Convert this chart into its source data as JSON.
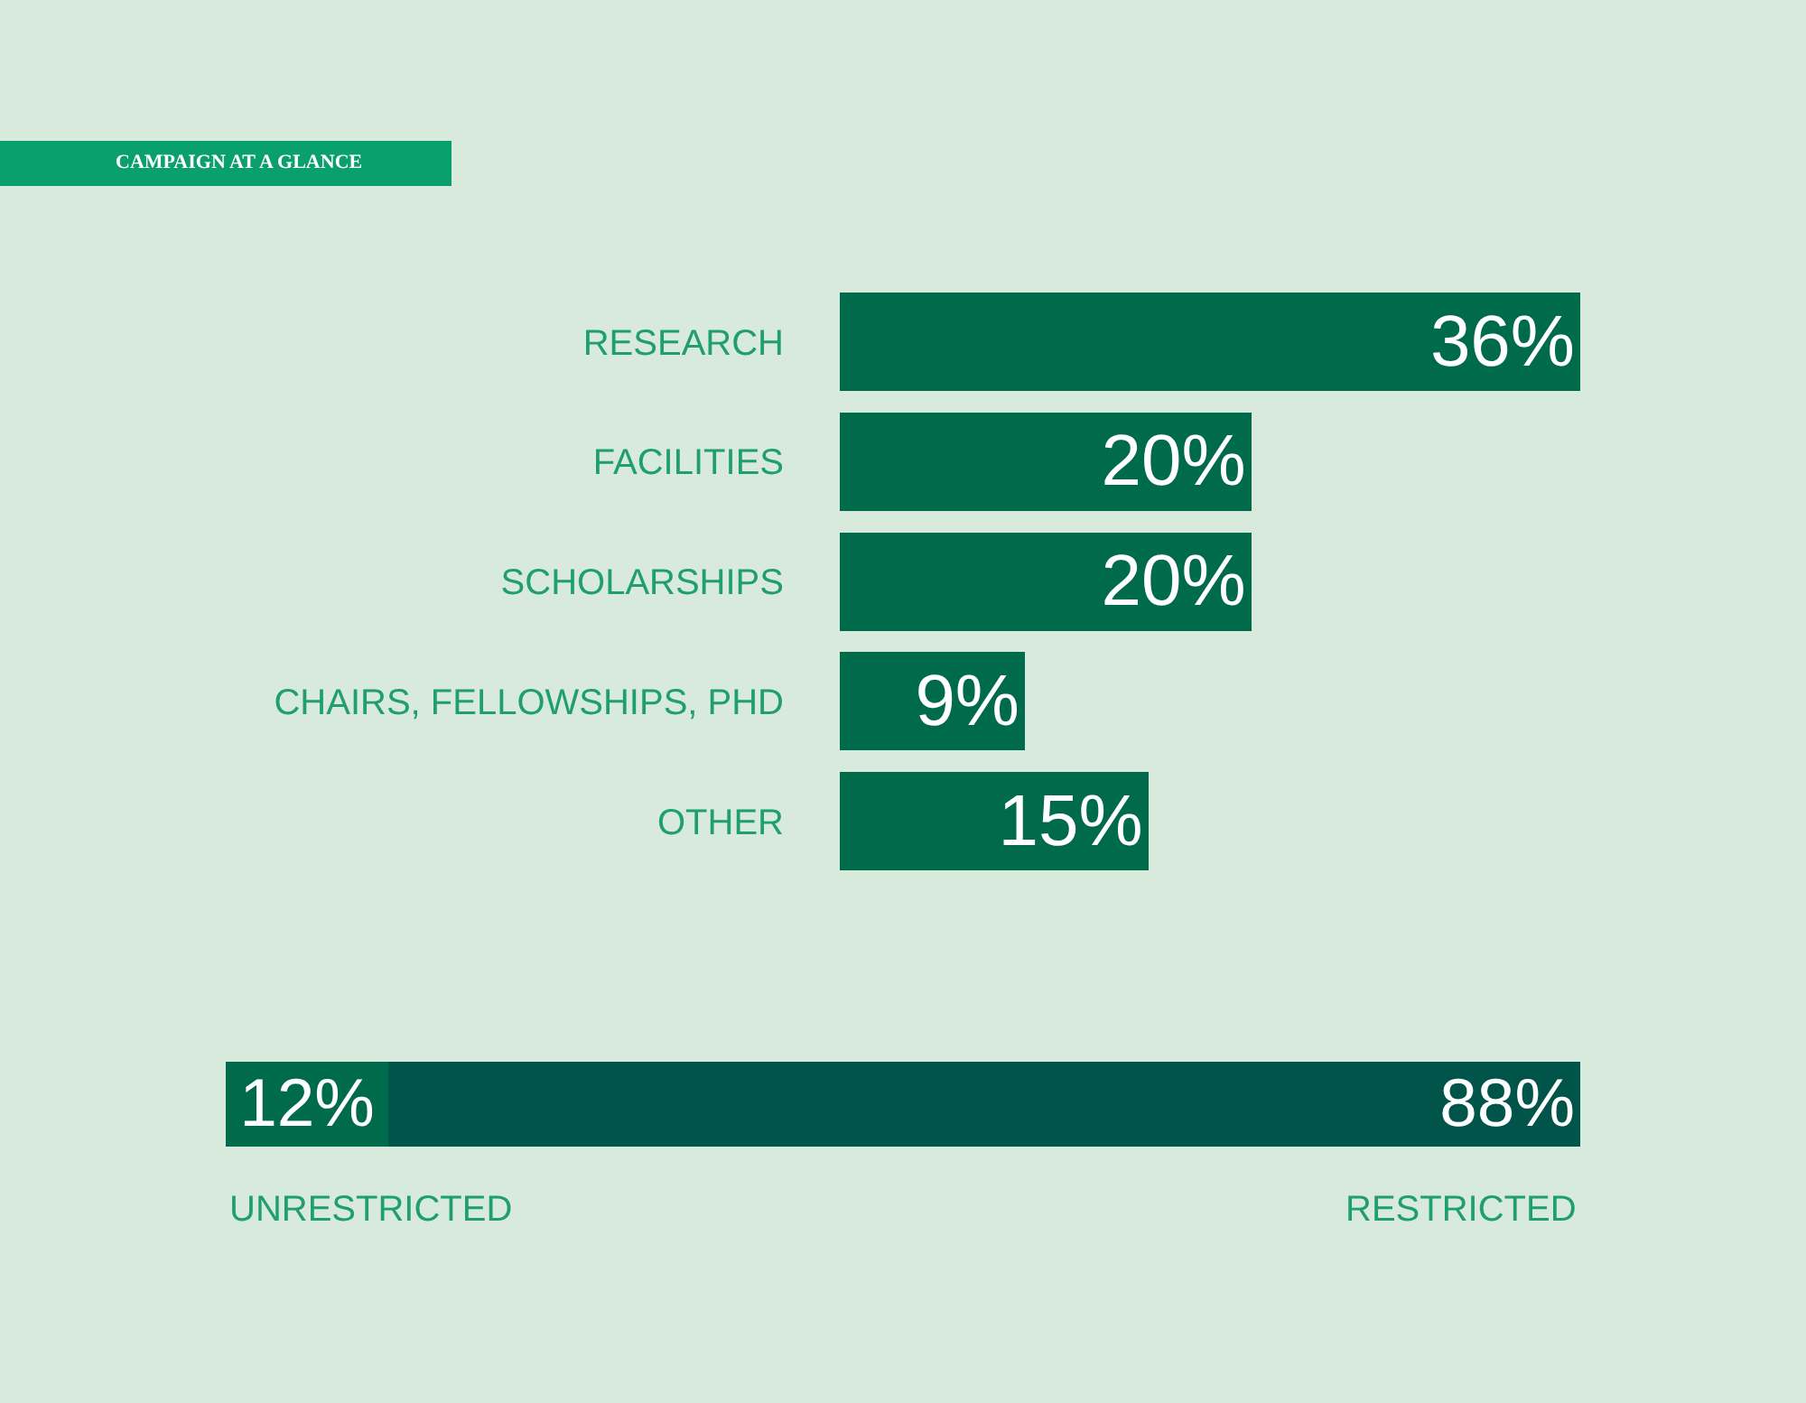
{
  "chart_data": [
    {
      "type": "bar",
      "title": "CAMPAIGN AT A GLANCE",
      "orientation": "horizontal",
      "categories": [
        "RESEARCH",
        "FACILITIES",
        "SCHOLARSHIPS",
        "CHAIRS, FELLOWSHIPS, PHD",
        "OTHER"
      ],
      "values": [
        36,
        20,
        20,
        9,
        15
      ],
      "value_labels": [
        "36%",
        "20%",
        "20%",
        "9%",
        "15%"
      ],
      "color": "#006b4a"
    },
    {
      "type": "bar",
      "orientation": "horizontal",
      "stacked": true,
      "categories": [
        null
      ],
      "series": [
        {
          "name": "UNRESTRICTED",
          "color": "#006b4a",
          "values": [
            12
          ],
          "value_labels": [
            "12%"
          ]
        },
        {
          "name": "RESTRICTED",
          "color": "#00544a",
          "values": [
            88
          ],
          "value_labels": [
            "88%"
          ]
        }
      ]
    }
  ]
}
